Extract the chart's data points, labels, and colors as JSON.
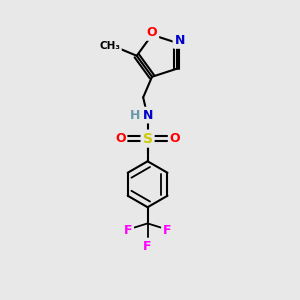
{
  "bg_color": "#e8e8e8",
  "atom_colors": {
    "C": "#000000",
    "N": "#0000cc",
    "O": "#ff0000",
    "S": "#cccc00",
    "F": "#ff00ff",
    "H": "#6699aa"
  },
  "bond_color": "#000000",
  "figsize": [
    3.0,
    3.0
  ],
  "dpi": 100
}
